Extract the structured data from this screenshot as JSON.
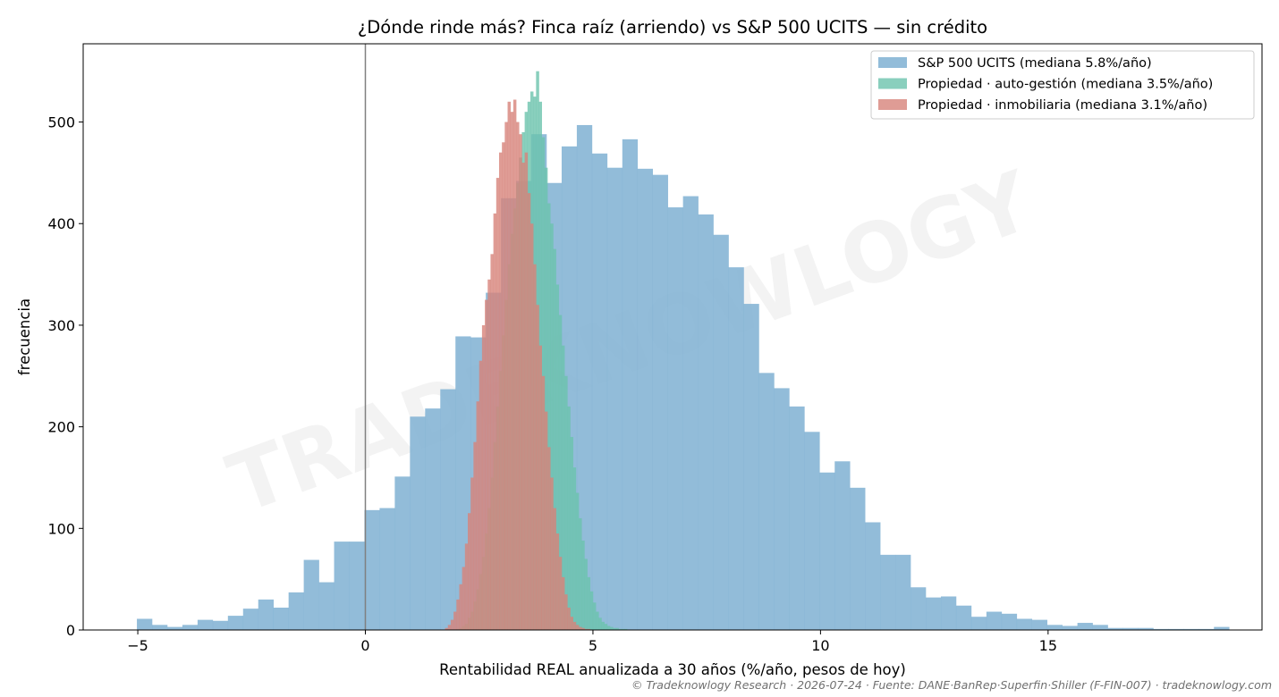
{
  "chart_data": {
    "type": "histogram",
    "title": "¿Dónde rinde más? Finca raíz (arriendo) vs S&P 500 UCITS — sin crédito",
    "xlabel": "Rentabilidad REAL anualizada a 30 años (%/año, pesos de hoy)",
    "ylabel": "frecuencia",
    "xlim": [
      -6.2,
      19.7
    ],
    "ylim": [
      0,
      577
    ],
    "x_ticks": [
      -5,
      0,
      5,
      10,
      15
    ],
    "y_ticks": [
      0,
      100,
      200,
      300,
      400,
      500
    ],
    "vline_x": 0,
    "legend_position": "upper right",
    "watermark": "TRADEKNOWLOGY",
    "footer": "© Tradeknowlogy Research   ·   2026-07-24   ·   Fuente: DANE·BanRep·Superfin·Shiller (F-FIN-007)   ·   tradeknowlogy.com",
    "series": [
      {
        "name": "S&P 500 UCITS (mediana 5.8%/año)",
        "color": "#7fb0d2",
        "opacity": 0.85,
        "bin_start": -5.02,
        "bin_width": 0.3333,
        "values": [
          11,
          5,
          3,
          5,
          10,
          9,
          14,
          21,
          30,
          22,
          37,
          69,
          47,
          87,
          87,
          118,
          120,
          151,
          210,
          218,
          237,
          289,
          288,
          332,
          425,
          442,
          488,
          440,
          476,
          497,
          469,
          455,
          483,
          454,
          448,
          416,
          427,
          409,
          389,
          357,
          321,
          253,
          238,
          220,
          195,
          155,
          166,
          140,
          106,
          74,
          74,
          42,
          32,
          33,
          24,
          13,
          18,
          16,
          11,
          10,
          5,
          4,
          7,
          5,
          2,
          2,
          2,
          1,
          1,
          1,
          1,
          3
        ]
      },
      {
        "name": "Propiedad · auto-gestión (mediana 3.5%/año)",
        "color": "#6cc3ad",
        "opacity": 0.8,
        "bin_start": 2.0,
        "bin_width": 0.0625,
        "values": [
          1,
          2,
          4,
          6,
          12,
          18,
          28,
          40,
          55,
          72,
          95,
          120,
          150,
          185,
          220,
          255,
          290,
          325,
          360,
          390,
          415,
          440,
          465,
          490,
          510,
          520,
          530,
          525,
          550,
          520,
          485,
          455,
          420,
          400,
          375,
          340,
          310,
          280,
          250,
          220,
          190,
          160,
          135,
          110,
          88,
          70,
          52,
          38,
          27,
          18,
          12,
          8,
          6,
          4,
          3,
          2,
          2,
          1,
          1,
          1
        ]
      },
      {
        "name": "Propiedad · inmobiliaria (mediana 3.1%/año)",
        "color": "#d7837b",
        "opacity": 0.8,
        "bin_start": 1.75,
        "bin_width": 0.0625,
        "values": [
          2,
          5,
          10,
          18,
          30,
          45,
          62,
          85,
          115,
          150,
          185,
          225,
          265,
          300,
          325,
          345,
          370,
          410,
          445,
          470,
          480,
          500,
          520,
          510,
          522,
          500,
          488,
          460,
          470,
          430,
          400,
          360,
          320,
          280,
          250,
          215,
          180,
          150,
          120,
          95,
          72,
          52,
          35,
          22,
          13,
          8,
          5,
          3,
          2,
          1,
          1
        ]
      }
    ]
  }
}
